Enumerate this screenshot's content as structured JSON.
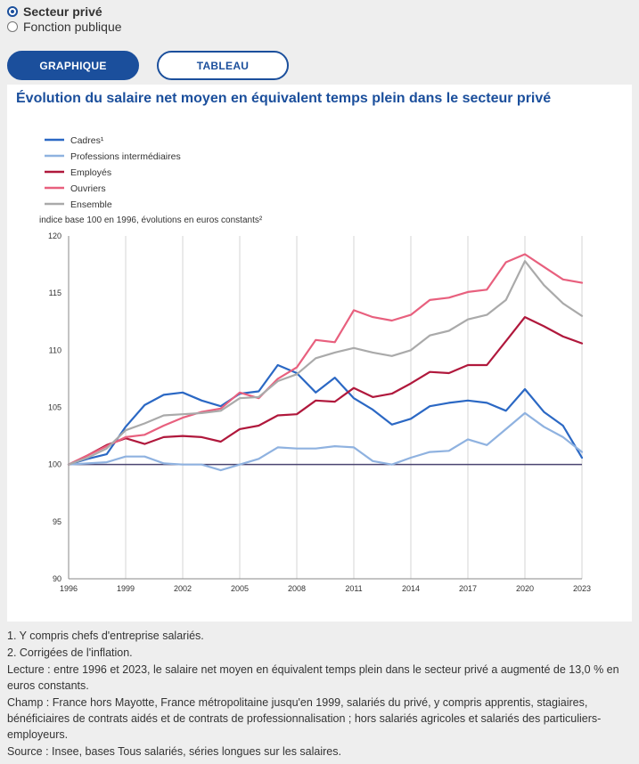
{
  "radio": {
    "option1": "Secteur privé",
    "option2": "Fonction publique"
  },
  "tabs": {
    "graphique": "GRAPHIQUE",
    "tableau": "TABLEAU"
  },
  "chart_data": {
    "type": "line",
    "title": "Évolution du salaire net moyen en équivalent temps plein dans le secteur privé",
    "ylabel": "indice base 100 en 1996, évolutions en euros constants²",
    "xlabel": "",
    "ylim": [
      90,
      120
    ],
    "yticks": [
      90,
      95,
      100,
      105,
      110,
      115,
      120
    ],
    "xlim": [
      1996,
      2023
    ],
    "xticks": [
      1996,
      1999,
      2002,
      2005,
      2008,
      2011,
      2014,
      2017,
      2020,
      2023
    ],
    "reference_line": 100,
    "legend_position": "top-left",
    "x": [
      1996,
      1997,
      1998,
      1999,
      2000,
      2001,
      2002,
      2003,
      2004,
      2005,
      2006,
      2007,
      2008,
      2009,
      2010,
      2011,
      2012,
      2013,
      2014,
      2015,
      2016,
      2017,
      2018,
      2019,
      2020,
      2021,
      2022,
      2023
    ],
    "series": [
      {
        "name": "Cadres¹",
        "color": "#2b68c4",
        "values": [
          100.0,
          100.5,
          100.9,
          103.3,
          105.2,
          106.1,
          106.3,
          105.6,
          105.1,
          106.2,
          106.4,
          108.7,
          108.0,
          106.3,
          107.6,
          105.8,
          104.8,
          103.5,
          104.0,
          105.1,
          105.4,
          105.6,
          105.4,
          104.7,
          106.6,
          104.6,
          103.4,
          100.6
        ]
      },
      {
        "name": "Professions intermédiaires",
        "color": "#8fb2e0",
        "values": [
          100.0,
          100.1,
          100.2,
          100.7,
          100.7,
          100.1,
          100.0,
          100.0,
          99.5,
          100.0,
          100.5,
          101.5,
          101.4,
          101.4,
          101.6,
          101.5,
          100.3,
          100.0,
          100.6,
          101.1,
          101.2,
          102.2,
          101.7,
          103.1,
          104.5,
          103.3,
          102.4,
          101.1
        ]
      },
      {
        "name": "Employés",
        "color": "#b0183c",
        "values": [
          100.0,
          100.8,
          101.7,
          102.3,
          101.8,
          102.4,
          102.5,
          102.4,
          102.0,
          103.1,
          103.4,
          104.3,
          104.4,
          105.6,
          105.5,
          106.7,
          105.9,
          106.2,
          107.1,
          108.1,
          108.0,
          108.7,
          108.7,
          110.8,
          112.9,
          112.1,
          111.2,
          110.6
        ]
      },
      {
        "name": "Ouvriers",
        "color": "#e8607e",
        "values": [
          100.0,
          100.8,
          101.6,
          102.4,
          102.6,
          103.4,
          104.1,
          104.6,
          104.9,
          106.3,
          105.8,
          107.5,
          108.5,
          110.9,
          110.7,
          113.5,
          112.9,
          112.6,
          113.1,
          114.4,
          114.6,
          115.1,
          115.3,
          117.7,
          118.4,
          117.3,
          116.2,
          115.9
        ]
      },
      {
        "name": "Ensemble",
        "color": "#aaaaaa",
        "values": [
          100.0,
          100.6,
          101.4,
          103.0,
          103.6,
          104.3,
          104.4,
          104.5,
          104.7,
          105.8,
          105.9,
          107.3,
          107.9,
          109.3,
          109.8,
          110.2,
          109.8,
          109.5,
          110.0,
          111.3,
          111.7,
          112.7,
          113.1,
          114.4,
          117.8,
          115.7,
          114.1,
          113.0
        ]
      }
    ]
  },
  "notes": {
    "note1": "1. Y compris chefs d'entreprise salariés.",
    "note2": "2. Corrigées de l'inflation.",
    "lecture": "Lecture : entre 1996 et 2023, le salaire net moyen en équivalent temps plein dans le secteur privé a augmenté de 13,0 % en euros constants.",
    "champ": "Champ : France hors Mayotte, France métropolitaine jusqu'en 1999, salariés du privé, y compris apprentis, stagiaires, bénéficiaires de contrats aidés et de contrats de professionnalisation ; hors salariés agricoles et salariés des particuliers-employeurs.",
    "source": "Source : Insee, bases Tous salariés, séries longues sur les salaires."
  }
}
